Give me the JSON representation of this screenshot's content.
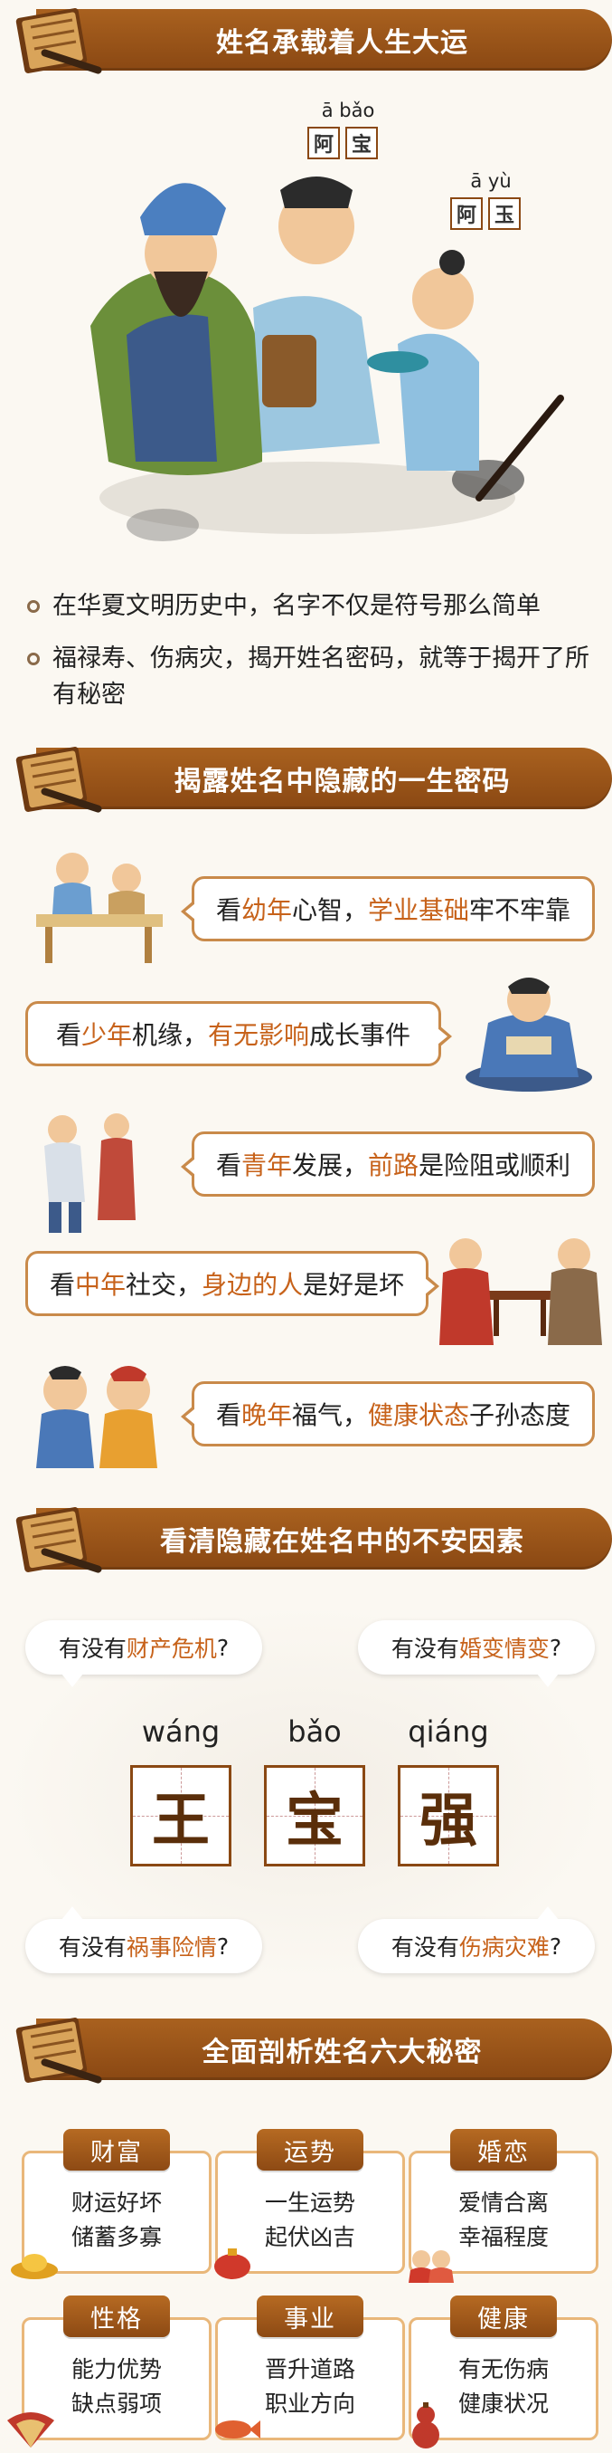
{
  "section1": {
    "title": "姓名承载着人生大运",
    "pinyin_labels": [
      {
        "pinyin": "ā bǎo",
        "chars": [
          "阿",
          "宝"
        ]
      },
      {
        "pinyin": "ā yù",
        "chars": [
          "阿",
          "玉"
        ]
      }
    ],
    "bullets": [
      "在华夏文明历史中，名字不仅是符号那么简单",
      "福禄寿、伤病灾，揭开姓名密码，就等于揭开了所有秘密"
    ]
  },
  "section2": {
    "title": "揭露姓名中隐藏的一生密码",
    "items": [
      {
        "pre": "看",
        "em1": "幼年",
        "mid": "心智，",
        "em2": "学业基础",
        "post": "牢不牢靠"
      },
      {
        "pre": "看",
        "em1": "少年",
        "mid": "机缘，",
        "em2": "有无影响",
        "post": "成长事件"
      },
      {
        "pre": "看",
        "em1": "青年",
        "mid": "发展，",
        "em2": "前路",
        "post": "是险阻或顺利"
      },
      {
        "pre": "看",
        "em1": "中年",
        "mid": "社交，",
        "em2": "身边的人",
        "post": "是好是坏"
      },
      {
        "pre": "看",
        "em1": "晚年",
        "mid": "福气，",
        "em2": "健康状态",
        "post": "子孙态度"
      }
    ]
  },
  "section3": {
    "title": "看清隐藏在姓名中的不安因素",
    "questions": [
      {
        "pre": "有没有",
        "em": "财产危机",
        "post": "?"
      },
      {
        "pre": "有没有",
        "em": "婚变情变",
        "post": "?"
      },
      {
        "pre": "有没有",
        "em": "祸事险情",
        "post": "?"
      },
      {
        "pre": "有没有",
        "em": "伤病灾难",
        "post": "?"
      }
    ],
    "name_chars": [
      {
        "pinyin": "wáng",
        "char": "王"
      },
      {
        "pinyin": "bǎo",
        "char": "宝"
      },
      {
        "pinyin": "qiáng",
        "char": "强"
      }
    ]
  },
  "section4": {
    "title": "全面剖析姓名六大秘密",
    "cards": [
      {
        "tag": "财富",
        "line1": "财运好坏",
        "line2": "储蓄多寡"
      },
      {
        "tag": "运势",
        "line1": "一生运势",
        "line2": "起伏凶吉"
      },
      {
        "tag": "婚恋",
        "line1": "爱情合离",
        "line2": "幸福程度"
      },
      {
        "tag": "性格",
        "line1": "能力优势",
        "line2": "缺点弱项"
      },
      {
        "tag": "事业",
        "line1": "晋升道路",
        "line2": "职业方向"
      },
      {
        "tag": "健康",
        "line1": "有无伤病",
        "line2": "健康状况"
      }
    ]
  },
  "colors": {
    "brown": "#8a4813",
    "accent": "#c7621a",
    "border": "#c98a4a",
    "background": "#fbf8f2"
  },
  "icons": [
    "book-scroll-icon",
    "bullet-circle-icon"
  ]
}
